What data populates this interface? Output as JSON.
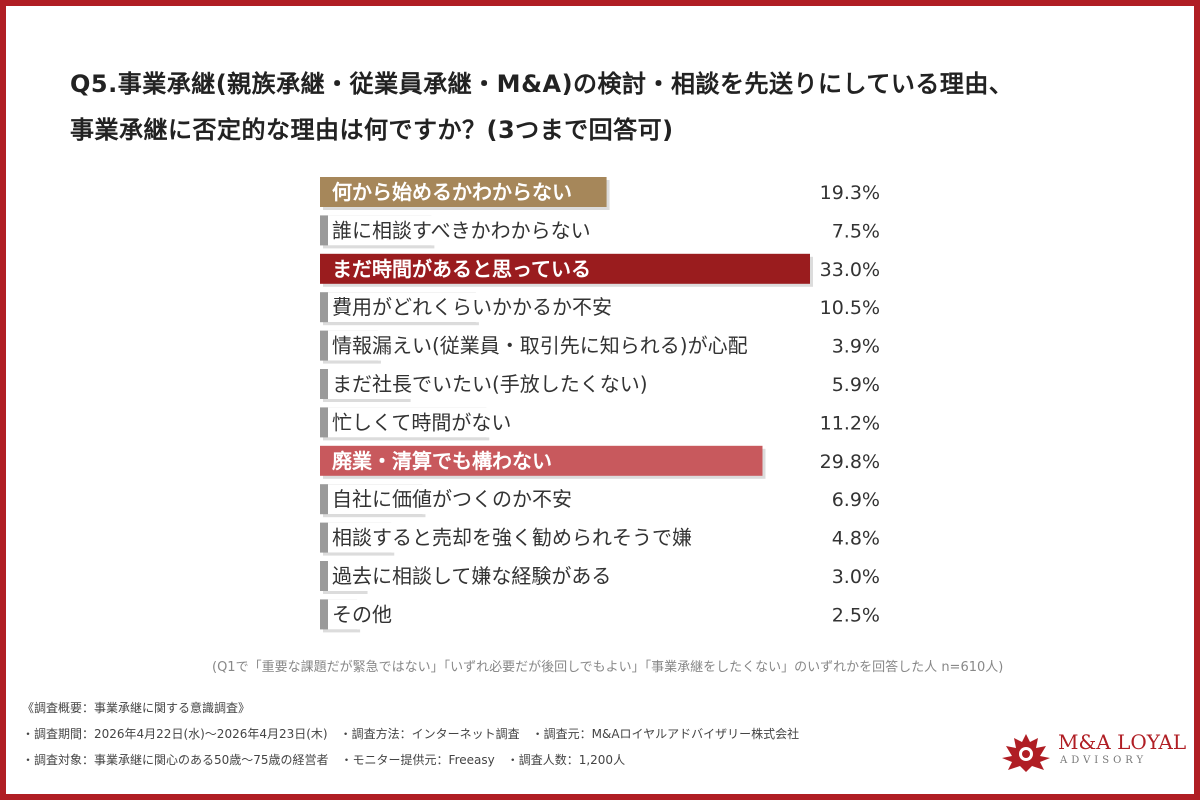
{
  "title": {
    "line1": "Q5.事業承継(親族承継・従業員承継・M&A)の検討・相談を先送りにしている理由、",
    "line2": "事業承継に否定的な理由は何ですか？(3つまで回答可)"
  },
  "chart_data": {
    "type": "bar",
    "orientation": "horizontal",
    "categories": [
      "何から始めるかわからない",
      "誰に相談すべきかわからない",
      "まだ時間があると思っている",
      "費用がどれくらいかかるか不安",
      "情報漏えい(従業員・取引先に知られる)が心配",
      "まだ社長でいたい(手放したくない)",
      "忙しくて時間がない",
      "廃業・清算でも構わない",
      "自社に価値がつくのか不安",
      "相談すると売却を強く勧められそうで嫌",
      "過去に相談して嫌な経験がある",
      "その他"
    ],
    "values": [
      19.3,
      7.5,
      33.0,
      10.5,
      3.9,
      5.9,
      11.2,
      29.8,
      6.9,
      4.8,
      3.0,
      2.5
    ],
    "value_labels": [
      "19.3%",
      "7.5%",
      "33.0%",
      "10.5%",
      "3.9%",
      "5.9%",
      "11.2%",
      "29.8%",
      "6.9%",
      "4.8%",
      "3.0%",
      "2.5%"
    ],
    "colors": [
      "#a6875a",
      "#9a9a9a",
      "#9a1c1e",
      "#9a9a9a",
      "#9a9a9a",
      "#9a9a9a",
      "#9a9a9a",
      "#c8595d",
      "#9a9a9a",
      "#9a9a9a",
      "#9a9a9a",
      "#9a9a9a"
    ],
    "highlight_label_color": "#ffffff",
    "default_label_color": "#333333",
    "xlim": [
      0,
      33
    ]
  },
  "note": "(Q1で「重要な課題だが緊急ではない」「いずれ必要だが後回しでもよい」「事業承継をしたくない」のいずれかを回答した人 n=610人)",
  "survey": {
    "heading": "《調査概要：事業承継に関する意識調査》",
    "line1": "・調査期間：2026年4月22日(水)〜2026年4月23日(木)　・調査方法：インターネット調査　・調査元：M&Aロイヤルアドバイザリー株式会社",
    "line2": "・調査対象：事業承継に関心のある50歳〜75歳の経営者　・モニター提供元：Freeasy　・調査人数：1,200人"
  },
  "logo": {
    "name": "M&A LOYAL",
    "sub": "ADVISORY",
    "color": "#b01e24"
  }
}
